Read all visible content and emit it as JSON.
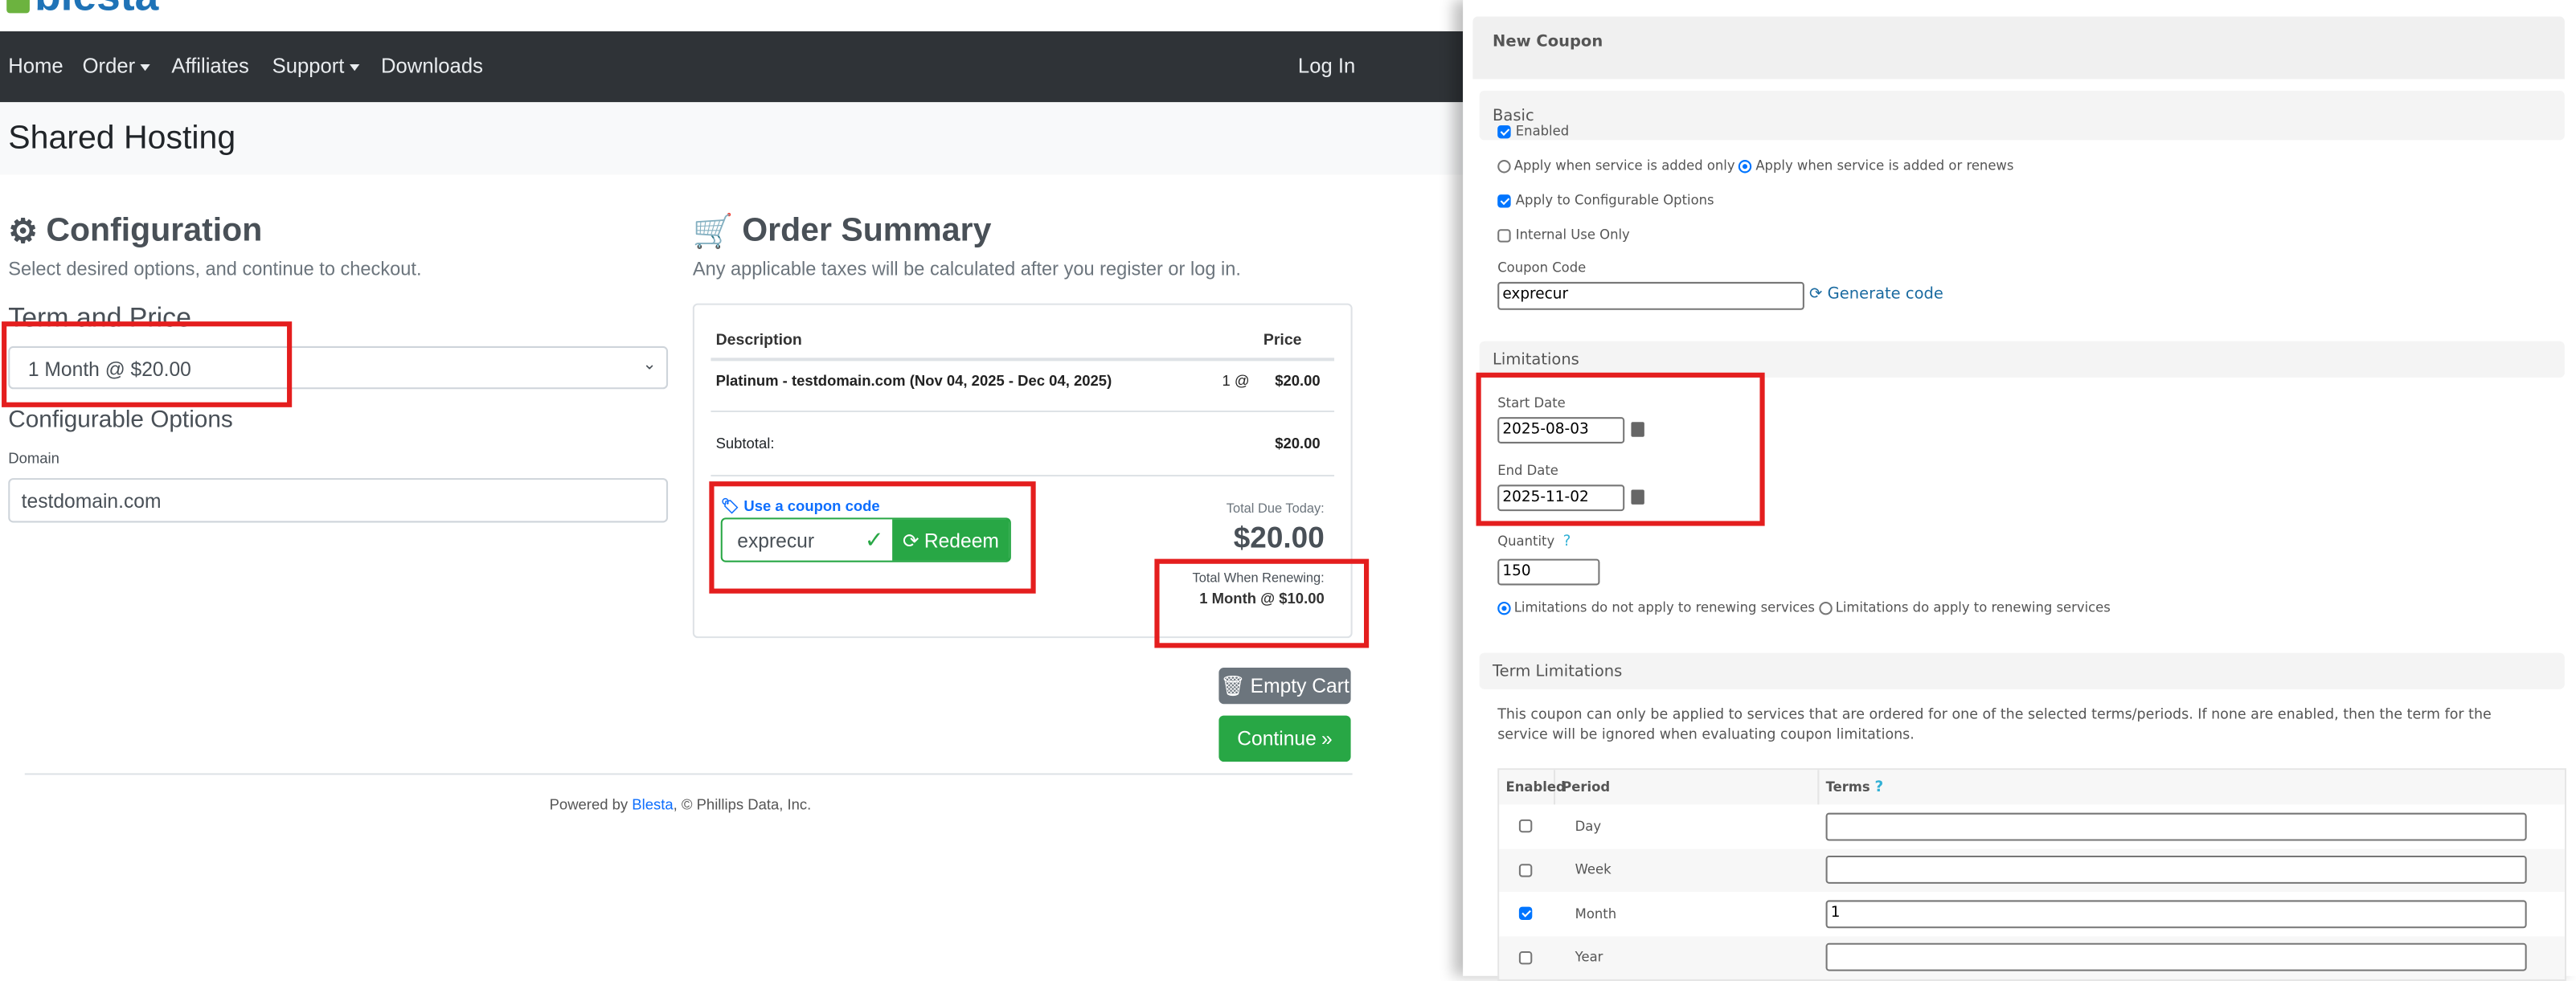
{
  "brand": {
    "logo_text": "blesta",
    "colors": {
      "nav_bg": "#2f3337",
      "primary": "#0d6efd",
      "success": "#28a745",
      "secondary": "#6c757d",
      "highlight": "#e41e1e"
    }
  },
  "nav": {
    "items": [
      {
        "label": "Home"
      },
      {
        "label": "Order",
        "dropdown": true
      },
      {
        "label": "Affiliates"
      },
      {
        "label": "Support",
        "dropdown": true
      },
      {
        "label": "Downloads"
      }
    ],
    "login": "Log In"
  },
  "page_title": "Shared Hosting",
  "config": {
    "title": "Configuration",
    "icon": "gear-icon",
    "subtitle": "Select desired options, and continue to checkout.",
    "term_label": "Term and Price",
    "term_value": "1 Month @ $20.00",
    "options_title": "Configurable Options",
    "domain_label": "Domain",
    "domain_value": "testdomain.com"
  },
  "summary": {
    "title": "Order Summary",
    "icon": "cart-icon",
    "note": "Any applicable taxes will be calculated after you register or log in.",
    "col_description": "Description",
    "col_price": "Price",
    "item": {
      "description": "Platinum - testdomain.com (Nov 04, 2025 - Dec 04, 2025)",
      "qty": "1 @",
      "price": "$20.00"
    },
    "subtotal_label": "Subtotal:",
    "subtotal": "$20.00",
    "coupon_label": "Use a coupon code",
    "coupon_value": "exprecur",
    "redeem": "Redeem",
    "total_due_label": "Total Due Today:",
    "total_due": "$20.00",
    "renew_label": "Total When Renewing:",
    "renew_value": "1 Month @ $10.00",
    "empty_cart": "Empty Cart",
    "continue": "Continue"
  },
  "footer": {
    "prefix": "Powered by ",
    "link": "Blesta",
    "suffix": ", © Phillips Data, Inc."
  },
  "coupon": {
    "title": "New Coupon",
    "basic": {
      "title": "Basic",
      "enabled": {
        "label": "Enabled",
        "checked": true
      },
      "apply_added_only": {
        "label": "Apply when service is added only",
        "selected": false
      },
      "apply_added_renews": {
        "label": "Apply when service is added or renews",
        "selected": true
      },
      "config_options": {
        "label": "Apply to Configurable Options",
        "checked": true
      },
      "internal": {
        "label": "Internal Use Only",
        "checked": false
      },
      "code_label": "Coupon Code",
      "code_value": "exprecur",
      "generate": "Generate code"
    },
    "limitations": {
      "title": "Limitations",
      "start_label": "Start Date",
      "start_value": "2025-08-03",
      "end_label": "End Date",
      "end_value": "2025-11-02",
      "quantity_label": "Quantity",
      "quantity_help": "?",
      "quantity_value": "150",
      "no_apply_renew": {
        "label": "Limitations do not apply to renewing services",
        "selected": true
      },
      "apply_renew": {
        "label": "Limitations do apply to renewing services",
        "selected": false
      }
    },
    "terms": {
      "title": "Term Limitations",
      "description": "This coupon can only be applied to services that are ordered for one of the selected terms/periods. If none are enabled, then the term for the service will be ignored when evaluating coupon limitations.",
      "col_enabled": "Enabled",
      "col_period": "Period",
      "col_terms": "Terms",
      "terms_help": "?",
      "rows": [
        {
          "period": "Day",
          "enabled": false,
          "terms": ""
        },
        {
          "period": "Week",
          "enabled": false,
          "terms": ""
        },
        {
          "period": "Month",
          "enabled": true,
          "terms": "1"
        },
        {
          "period": "Year",
          "enabled": false,
          "terms": ""
        }
      ]
    }
  }
}
